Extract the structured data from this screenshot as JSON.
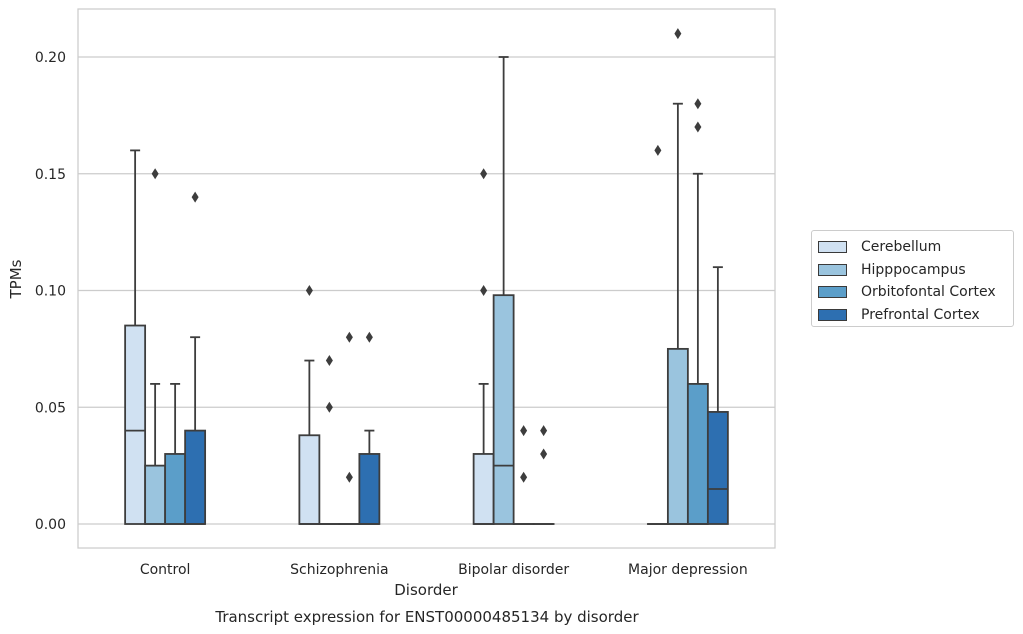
{
  "chart_data": {
    "type": "box",
    "title": "Transcript expression for ENST00000485134 by disorder",
    "xlabel": "Disorder",
    "ylabel": "TPMs",
    "ylim": [
      -0.01,
      0.22
    ],
    "yticks": [
      "0.00",
      "0.05",
      "0.10",
      "0.15",
      "0.20"
    ],
    "grid": true,
    "legend_position": "right",
    "categories": [
      "Control",
      "Schizophrenia",
      "Bipolar disorder",
      "Major depression"
    ],
    "series": [
      {
        "name": "Cerebellum",
        "color": "#d0e1f2",
        "boxes": [
          {
            "q1": 0.0,
            "median": 0.04,
            "q3": 0.085,
            "whislo": 0.0,
            "whishi": 0.16,
            "fliers": []
          },
          {
            "q1": 0.0,
            "median": 0.0,
            "q3": 0.038,
            "whislo": 0.0,
            "whishi": 0.07,
            "fliers": [
              0.1
            ]
          },
          {
            "q1": 0.0,
            "median": 0.0,
            "q3": 0.03,
            "whislo": 0.0,
            "whishi": 0.06,
            "fliers": [
              0.1,
              0.15
            ]
          },
          {
            "q1": 0.0,
            "median": 0.0,
            "q3": 0.0,
            "whislo": 0.0,
            "whishi": 0.0,
            "fliers": [
              0.16
            ]
          }
        ]
      },
      {
        "name": "Hipppocampus",
        "color": "#9ac4de",
        "boxes": [
          {
            "q1": 0.0,
            "median": 0.0,
            "q3": 0.025,
            "whislo": 0.0,
            "whishi": 0.06,
            "fliers": [
              0.15
            ]
          },
          {
            "q1": 0.0,
            "median": 0.0,
            "q3": 0.0,
            "whislo": 0.0,
            "whishi": 0.0,
            "fliers": [
              0.05,
              0.07
            ]
          },
          {
            "q1": 0.0,
            "median": 0.025,
            "q3": 0.098,
            "whislo": 0.0,
            "whishi": 0.2,
            "fliers": []
          },
          {
            "q1": 0.0,
            "median": 0.0,
            "q3": 0.075,
            "whislo": 0.0,
            "whishi": 0.18,
            "fliers": [
              0.21
            ]
          }
        ]
      },
      {
        "name": "Orbitofontal Cortex",
        "color": "#5b9ec9",
        "boxes": [
          {
            "q1": 0.0,
            "median": 0.0,
            "q3": 0.03,
            "whislo": 0.0,
            "whishi": 0.06,
            "fliers": []
          },
          {
            "q1": 0.0,
            "median": 0.0,
            "q3": 0.0,
            "whislo": 0.0,
            "whishi": 0.0,
            "fliers": [
              0.02,
              0.08
            ]
          },
          {
            "q1": 0.0,
            "median": 0.0,
            "q3": 0.0,
            "whislo": 0.0,
            "whishi": 0.0,
            "fliers": [
              0.02,
              0.04
            ]
          },
          {
            "q1": 0.0,
            "median": 0.0,
            "q3": 0.06,
            "whislo": 0.0,
            "whishi": 0.15,
            "fliers": [
              0.17,
              0.18
            ]
          }
        ]
      },
      {
        "name": "Prefrontal Cortex",
        "color": "#2d6fb1",
        "boxes": [
          {
            "q1": 0.0,
            "median": 0.0,
            "q3": 0.04,
            "whislo": 0.0,
            "whishi": 0.08,
            "fliers": [
              0.14
            ]
          },
          {
            "q1": 0.0,
            "median": 0.0,
            "q3": 0.03,
            "whislo": 0.0,
            "whishi": 0.04,
            "fliers": [
              0.08
            ]
          },
          {
            "q1": 0.0,
            "median": 0.0,
            "q3": 0.0,
            "whislo": 0.0,
            "whishi": 0.0,
            "fliers": [
              0.03,
              0.04
            ]
          },
          {
            "q1": 0.0,
            "median": 0.015,
            "q3": 0.048,
            "whislo": 0.0,
            "whishi": 0.11,
            "fliers": []
          }
        ]
      }
    ]
  }
}
